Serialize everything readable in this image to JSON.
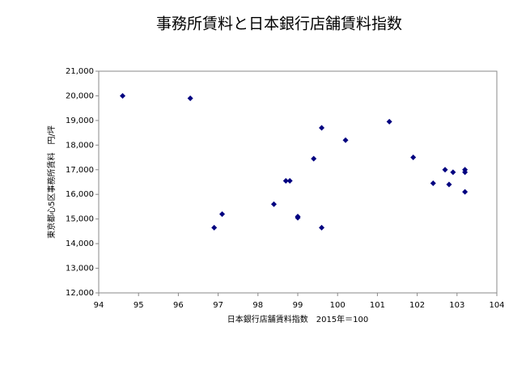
{
  "chart_data": {
    "type": "scatter",
    "title": "事務所賃料と日本銀行店舗賃料指数",
    "x_label": "日本銀行店舗賃料指数　2015年＝100",
    "y_label": "東京都心5区事務所賃料　円/坪",
    "color": "#000080",
    "x": [
      94.6,
      96.3,
      96.9,
      97.1,
      98.4,
      98.7,
      98.8,
      99.0,
      99.0,
      99.4,
      99.6,
      99.6,
      100.2,
      101.3,
      101.9,
      102.4,
      102.7,
      102.8,
      102.9,
      103.2,
      103.2,
      103.2
    ],
    "values": [
      20000,
      19900,
      14650,
      15200,
      15600,
      16550,
      16550,
      15100,
      15050,
      17450,
      18700,
      14650,
      18200,
      18950,
      17500,
      16450,
      17000,
      16400,
      16900,
      17000,
      16900,
      16100
    ],
    "xlim": [
      94,
      104
    ],
    "xticks": [
      94,
      95,
      96,
      97,
      98,
      99,
      100,
      101,
      102,
      103,
      104
    ],
    "ylim": [
      12000,
      21000
    ],
    "yticks": [
      {
        "value": 12000,
        "label": "12,000"
      },
      {
        "value": 13000,
        "label": "13,000"
      },
      {
        "value": 14000,
        "label": "14,000"
      },
      {
        "value": 15000,
        "label": "15,000"
      },
      {
        "value": 16000,
        "label": "16,000"
      },
      {
        "value": 17000,
        "label": "17,000"
      },
      {
        "value": 18000,
        "label": "18,000"
      },
      {
        "value": 19000,
        "label": "19,000"
      },
      {
        "value": 20000,
        "label": "20,000"
      },
      {
        "value": 21000,
        "label": "21,000"
      }
    ],
    "grid": false
  }
}
